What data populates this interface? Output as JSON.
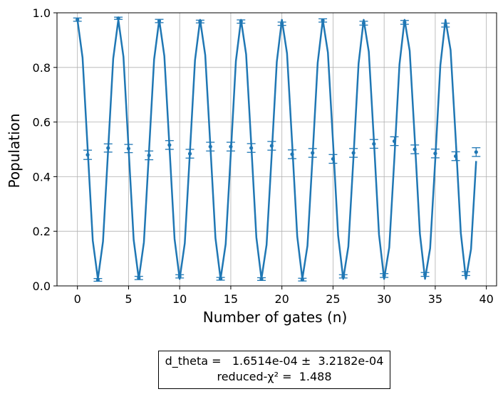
{
  "chart_data": {
    "type": "scatter",
    "xlabel": "Number of gates (n)",
    "ylabel": "Population",
    "xlim": [
      -2,
      41
    ],
    "ylim": [
      0.0,
      1.0
    ],
    "x_ticks": [
      0,
      5,
      10,
      15,
      20,
      25,
      30,
      35,
      40
    ],
    "x_tick_labels": [
      "0",
      "5",
      "10",
      "15",
      "20",
      "25",
      "30",
      "35",
      "40"
    ],
    "y_ticks": [
      0.0,
      0.2,
      0.4,
      0.6,
      0.8,
      1.0
    ],
    "y_tick_labels": [
      "0.0",
      "0.2",
      "0.4",
      "0.6",
      "0.8",
      "1.0"
    ],
    "grid": true,
    "color": "#1f77b4",
    "series": [
      {
        "kind": "errorbar",
        "x": [
          0,
          1,
          2,
          3,
          4,
          5,
          6,
          7,
          8,
          9,
          10,
          11,
          12,
          13,
          14,
          15,
          16,
          17,
          18,
          19,
          20,
          21,
          22,
          23,
          24,
          25,
          26,
          27,
          28,
          29,
          30,
          31,
          32,
          33,
          34,
          35,
          36,
          37,
          38,
          39
        ],
        "y": [
          0.975,
          0.48,
          0.022,
          0.505,
          0.98,
          0.503,
          0.029,
          0.478,
          0.97,
          0.516,
          0.035,
          0.484,
          0.968,
          0.51,
          0.026,
          0.51,
          0.968,
          0.505,
          0.025,
          0.513,
          0.96,
          0.482,
          0.023,
          0.487,
          0.972,
          0.465,
          0.035,
          0.487,
          0.962,
          0.52,
          0.038,
          0.53,
          0.965,
          0.5,
          0.042,
          0.485,
          0.955,
          0.475,
          0.045,
          0.49
        ],
        "yerr": [
          0.006,
          0.017,
          0.005,
          0.015,
          0.004,
          0.015,
          0.006,
          0.016,
          0.006,
          0.016,
          0.006,
          0.016,
          0.005,
          0.016,
          0.005,
          0.016,
          0.006,
          0.016,
          0.005,
          0.016,
          0.006,
          0.016,
          0.005,
          0.016,
          0.006,
          0.016,
          0.006,
          0.016,
          0.007,
          0.016,
          0.007,
          0.016,
          0.007,
          0.016,
          0.007,
          0.016,
          0.007,
          0.016,
          0.007,
          0.016
        ]
      },
      {
        "kind": "fit",
        "function": "0.5 + 0.4744*cos(pi*x/2) + 0.0011*x*sin(pi*x/2)",
        "x_range": [
          0,
          39
        ],
        "step": 0.5
      }
    ]
  },
  "fit_box": {
    "line1": "d_theta =   1.6514e-04 ±  3.2182e-04",
    "line2": "reduced-χ² =  1.488"
  }
}
